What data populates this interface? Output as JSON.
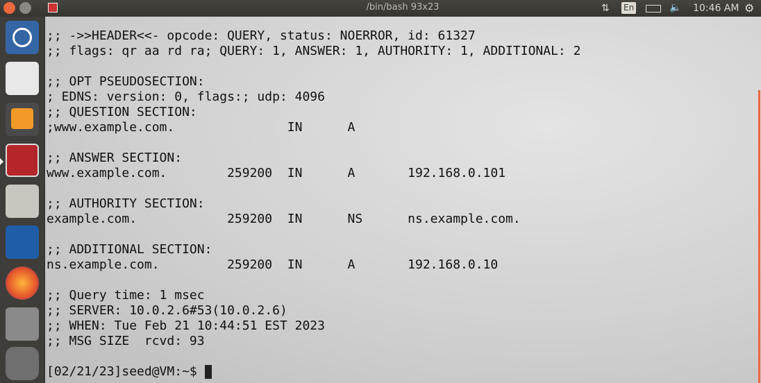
{
  "topbar": {
    "window_title": "/bin/bash 93x23",
    "keyboard": "En",
    "clock": "10:46 AM"
  },
  "terminal": {
    "blocks": [
      [
        ";; ->>HEADER<<- opcode: QUERY, status: NOERROR, id: 61327",
        ";; flags: qr aa rd ra; QUERY: 1, ANSWER: 1, AUTHORITY: 1, ADDITIONAL: 2"
      ],
      [
        ";; OPT PSEUDOSECTION:",
        "; EDNS: version: 0, flags:; udp: 4096",
        ";; QUESTION SECTION:",
        ";www.example.com.               IN      A"
      ],
      [
        ";; ANSWER SECTION:",
        "www.example.com.        259200  IN      A       192.168.0.101"
      ],
      [
        ";; AUTHORITY SECTION:",
        "example.com.            259200  IN      NS      ns.example.com."
      ],
      [
        ";; ADDITIONAL SECTION:",
        "ns.example.com.         259200  IN      A       192.168.0.10"
      ],
      [
        ";; Query time: 1 msec",
        ";; SERVER: 10.0.2.6#53(10.0.2.6)",
        ";; WHEN: Tue Feb 21 10:44:51 EST 2023",
        ";; MSG SIZE  rcvd: 93"
      ],
      [
        "[02/21/23]seed@VM:~$ "
      ]
    ]
  }
}
